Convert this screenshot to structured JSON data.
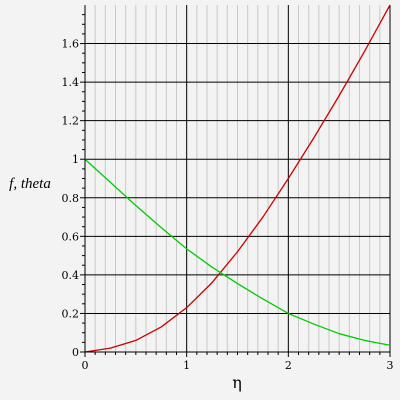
{
  "chart_data": {
    "type": "line",
    "title": "",
    "xlabel": "η",
    "ylabel": "f, theta",
    "xlim": [
      0,
      3
    ],
    "ylim": [
      0,
      1.8
    ],
    "x_ticks": [
      "0",
      "1",
      "2",
      "3"
    ],
    "y_ticks": [
      "0",
      "0.2",
      "0.4",
      "0.6",
      "0.8",
      "1",
      "1.2",
      "1.4",
      "1.6"
    ],
    "grid": true,
    "legend": "none",
    "x": [
      0,
      0.25,
      0.5,
      0.75,
      1.0,
      1.25,
      1.5,
      1.75,
      2.0,
      2.25,
      2.5,
      2.75,
      3.0
    ],
    "series": [
      {
        "color": "#cc0000",
        "values": [
          0.0,
          0.02,
          0.06,
          0.13,
          0.23,
          0.36,
          0.52,
          0.7,
          0.9,
          1.11,
          1.33,
          1.56,
          1.8
        ]
      },
      {
        "color": "#00cc00",
        "values": [
          1.0,
          0.88,
          0.76,
          0.645,
          0.535,
          0.44,
          0.355,
          0.275,
          0.2,
          0.145,
          0.095,
          0.06,
          0.035
        ]
      }
    ],
    "colors": {
      "grid": "#000000",
      "minor_grid": "#c8c8c8",
      "axis": "#000000",
      "background": "#f3f3f3"
    }
  }
}
